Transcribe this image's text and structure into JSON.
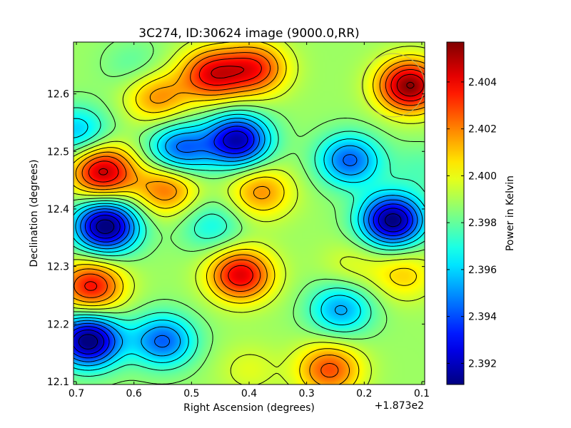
{
  "chart_data": {
    "type": "heatmap",
    "title": "3C274, ID:30624 image (9000.0,RR)",
    "xlabel": "Right Ascension (degrees)",
    "ylabel": "Declination (degrees)",
    "x_offset_label": "+1.873e2",
    "x_ticks": [
      0.7,
      0.6,
      0.5,
      0.4,
      0.3,
      0.2,
      0.1
    ],
    "x_tick_labels": [
      "0.7",
      "0.6",
      "0.5",
      "0.4",
      "0.3",
      "0.2",
      "0.1"
    ],
    "y_ticks": [
      12.1,
      12.2,
      12.3,
      12.4,
      12.5,
      12.6
    ],
    "y_tick_labels": [
      "12.1",
      "12.2",
      "12.3",
      "12.4",
      "12.5",
      "12.6"
    ],
    "xlim": [
      0.705,
      0.095
    ],
    "ylim": [
      12.095,
      12.69
    ],
    "grid": false,
    "colormap": "jet",
    "colorbar": {
      "label": "Power in Kelvin",
      "range": [
        2.3911,
        2.4057
      ],
      "ticks": [
        2.392,
        2.394,
        2.396,
        2.398,
        2.4,
        2.402,
        2.404
      ],
      "tick_labels": [
        "2.392",
        "2.394",
        "2.396",
        "2.398",
        "2.400",
        "2.402",
        "2.404"
      ]
    },
    "base_value": 2.3988,
    "features": [
      {
        "ra": 0.465,
        "dec": 12.635,
        "amp": 0.005
      },
      {
        "ra": 0.39,
        "dec": 12.645,
        "amp": 0.0045
      },
      {
        "ra": 0.56,
        "dec": 12.595,
        "amp": 0.003
      },
      {
        "ra": 0.12,
        "dec": 12.615,
        "amp": 0.0068
      },
      {
        "ra": 0.655,
        "dec": 12.465,
        "amp": 0.006
      },
      {
        "ra": 0.545,
        "dec": 12.435,
        "amp": 0.0035
      },
      {
        "ra": 0.38,
        "dec": 12.43,
        "amp": 0.003
      },
      {
        "ra": 0.415,
        "dec": 12.285,
        "amp": 0.0055
      },
      {
        "ra": 0.675,
        "dec": 12.265,
        "amp": 0.005
      },
      {
        "ra": 0.26,
        "dec": 12.12,
        "amp": 0.004
      },
      {
        "ra": 0.13,
        "dec": 12.285,
        "amp": 0.002
      },
      {
        "ra": 0.22,
        "dec": 12.3,
        "amp": 0.001
      },
      {
        "ra": 0.42,
        "dec": 12.52,
        "amp": -0.007
      },
      {
        "ra": 0.52,
        "dec": 12.505,
        "amp": -0.0045
      },
      {
        "ra": 0.225,
        "dec": 12.485,
        "amp": -0.0045
      },
      {
        "ra": 0.65,
        "dec": 12.37,
        "amp": -0.008
      },
      {
        "ra": 0.15,
        "dec": 12.38,
        "amp": -0.0078
      },
      {
        "ra": 0.68,
        "dec": 12.17,
        "amp": -0.008
      },
      {
        "ra": 0.55,
        "dec": 12.17,
        "amp": -0.0045
      },
      {
        "ra": 0.24,
        "dec": 12.225,
        "amp": -0.0035
      },
      {
        "ra": 0.465,
        "dec": 12.37,
        "amp": -0.002
      },
      {
        "ra": 0.7,
        "dec": 12.535,
        "amp": -0.003
      },
      {
        "ra": 0.6,
        "dec": 12.65,
        "amp": -0.001
      },
      {
        "ra": 0.1,
        "dec": 12.47,
        "amp": -0.001
      },
      {
        "ra": 0.4,
        "dec": 12.12,
        "amp": 0.001
      }
    ],
    "beam_marker": {
      "ra": 0.15,
      "dec": 12.615,
      "radius_deg": 0.055
    }
  }
}
